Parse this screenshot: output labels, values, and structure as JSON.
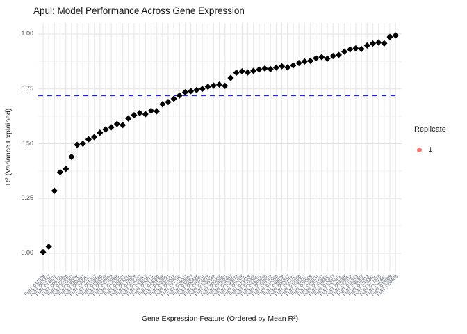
{
  "chart_data": {
    "type": "scatter",
    "title": "Apul: Model Performance Across Gene Expression",
    "xlabel": "Gene Expression Feature (Ordered by Mean R²)",
    "ylabel": "R² (Variance Explained)",
    "ylim": [
      0,
      1
    ],
    "ytick_labels": [
      "0.00",
      "0.25",
      "0.50",
      "0.75",
      "1.00"
    ],
    "grid": true,
    "point_shape": "diamond",
    "point_color": "#000000",
    "reference_line": {
      "y": 0.72,
      "color": "#2525DD",
      "style": "dashed"
    },
    "legend": {
      "position": "right",
      "title": "Replicate",
      "items": [
        {
          "label": "1",
          "color": "#F8766D"
        }
      ]
    },
    "colors": {
      "x_tick_text": "#5A6472",
      "y_tick_text": "#4D4D4D",
      "grid_major": "#E3E3E3",
      "grid_minor": "#F2F2F2",
      "grid_vertical": "#ECECEC"
    },
    "categories": [
      "FUN_031938",
      "FUN_002847",
      "FUN_014637",
      "FUN_006721",
      "FUN_022384",
      "FUN_010582",
      "FUN_035176",
      "FUN_008293",
      "FUN_026415",
      "FUN_001957",
      "FUN_019340",
      "FUN_004168",
      "FUN_037522",
      "FUN_012906",
      "FUN_029781",
      "FUN_007634",
      "FUN_021059",
      "FUN_016482",
      "FUN_033917",
      "FUN_005273",
      "FUN_024860",
      "FUN_011395",
      "FUN_038741",
      "FUN_003518",
      "FUN_027196",
      "FUN_015063",
      "FUN_032687",
      "FUN_009425",
      "FUN_020754",
      "FUN_013278",
      "FUN_036149",
      "FUN_000836",
      "FUN_025591",
      "FUN_018307",
      "FUN_040672",
      "FUN_006085",
      "FUN_023419",
      "FUN_010968",
      "FUN_034251",
      "FUN_002730",
      "FUN_028163",
      "FUN_016594",
      "FUN_039028",
      "FUN_005847",
      "FUN_021376",
      "FUN_012750",
      "FUN_030215",
      "FUN_008569",
      "FUN_026934",
      "FUN_001482",
      "FUN_019806",
      "FUN_015237",
      "FUN_037661",
      "FUN_004095",
      "FUN_022518",
      "FUN_011943",
      "FUN_035387",
      "FUN_007812",
      "FUN_024246",
      "FUN_017670",
      "FUN_041445",
      "FUN_033099",
      "FUN_028489"
    ],
    "series": [
      {
        "name": "1",
        "values": [
          0.005,
          0.03,
          0.285,
          0.37,
          0.385,
          0.44,
          0.495,
          0.5,
          0.52,
          0.53,
          0.55,
          0.565,
          0.575,
          0.59,
          0.585,
          0.615,
          0.63,
          0.64,
          0.635,
          0.65,
          0.648,
          0.68,
          0.69,
          0.705,
          0.72,
          0.735,
          0.74,
          0.745,
          0.75,
          0.76,
          0.765,
          0.77,
          0.764,
          0.8,
          0.824,
          0.83,
          0.825,
          0.832,
          0.838,
          0.843,
          0.84,
          0.847,
          0.853,
          0.848,
          0.857,
          0.868,
          0.875,
          0.878,
          0.89,
          0.895,
          0.888,
          0.9,
          0.905,
          0.92,
          0.93,
          0.935,
          0.932,
          0.948,
          0.957,
          0.962,
          0.958,
          0.987,
          0.994
        ]
      }
    ]
  }
}
